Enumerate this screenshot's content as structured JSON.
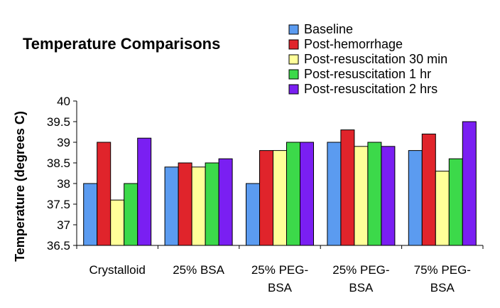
{
  "chart_data": {
    "type": "bar",
    "title": "Temperature Comparisons",
    "xlabel": "",
    "ylabel": "Temperature (degrees C)",
    "ylim": [
      36.5,
      40
    ],
    "yticks": [
      "36.5",
      "37",
      "37.5",
      "38",
      "38.5",
      "39",
      "39.5",
      "40"
    ],
    "grid": false,
    "legend_position": "top-right",
    "categories": [
      [
        "Crystalloid"
      ],
      [
        "25% BSA"
      ],
      [
        "25% PEG-",
        "BSA"
      ],
      [
        "25% PEG-",
        "BSA"
      ],
      [
        "75% PEG-",
        "BSA"
      ]
    ],
    "series": [
      {
        "name": "Baseline",
        "color": "#5B9BF0",
        "values": [
          38.0,
          38.4,
          38.0,
          39.0,
          38.8
        ]
      },
      {
        "name": "Post-hemorrhage",
        "color": "#E0242B",
        "values": [
          39.0,
          38.5,
          38.8,
          39.3,
          39.2
        ]
      },
      {
        "name": "Post-resuscitation 30 min",
        "color": "#FFFF99",
        "values": [
          37.6,
          38.4,
          38.8,
          38.9,
          38.3
        ]
      },
      {
        "name": "Post-resuscitation 1 hr",
        "color": "#3CD94A",
        "values": [
          38.0,
          38.5,
          39.0,
          39.0,
          38.6
        ]
      },
      {
        "name": "Post-resuscitation 2 hrs",
        "color": "#7A1FF2",
        "values": [
          39.1,
          38.6,
          39.0,
          38.9,
          39.5
        ]
      }
    ]
  }
}
